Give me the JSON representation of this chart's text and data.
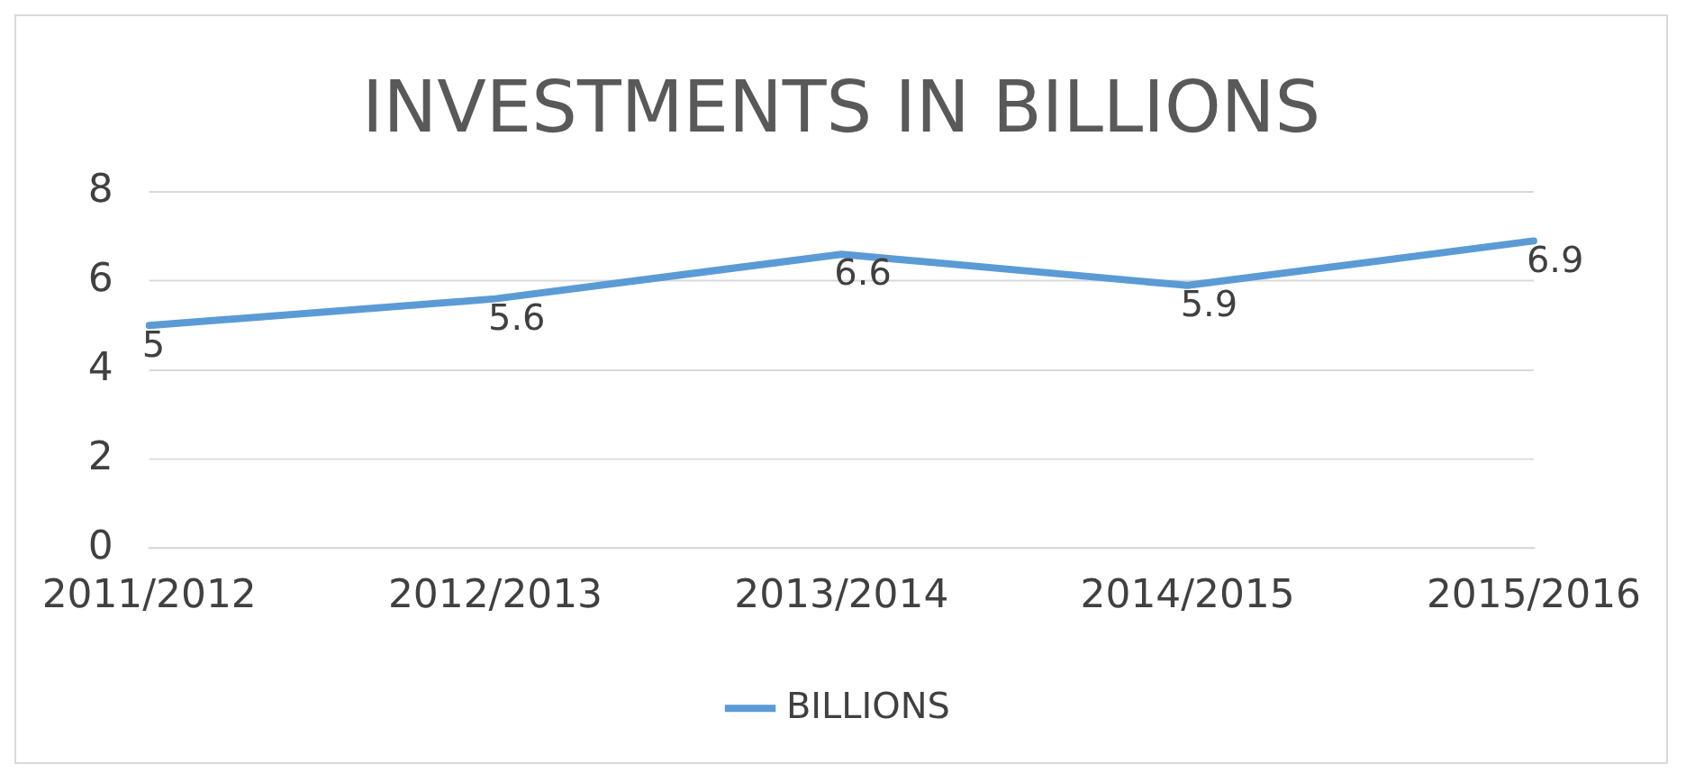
{
  "chart_data": {
    "type": "line",
    "title": "INVESTMENTS IN BILLIONS",
    "categories": [
      "2011/2012",
      "2012/2013",
      "2013/2014",
      "2014/2015",
      "2015/2016"
    ],
    "series": [
      {
        "name": "BILLIONS",
        "color": "#5b9bd5",
        "values": [
          5,
          5.6,
          6.6,
          5.9,
          6.9
        ]
      }
    ],
    "ylim": [
      0,
      8
    ],
    "yticks": [
      0,
      2,
      4,
      6,
      8
    ],
    "grid": "y",
    "legend": "bottom",
    "data_labels": true,
    "marker": "none",
    "line_style": "solid"
  }
}
